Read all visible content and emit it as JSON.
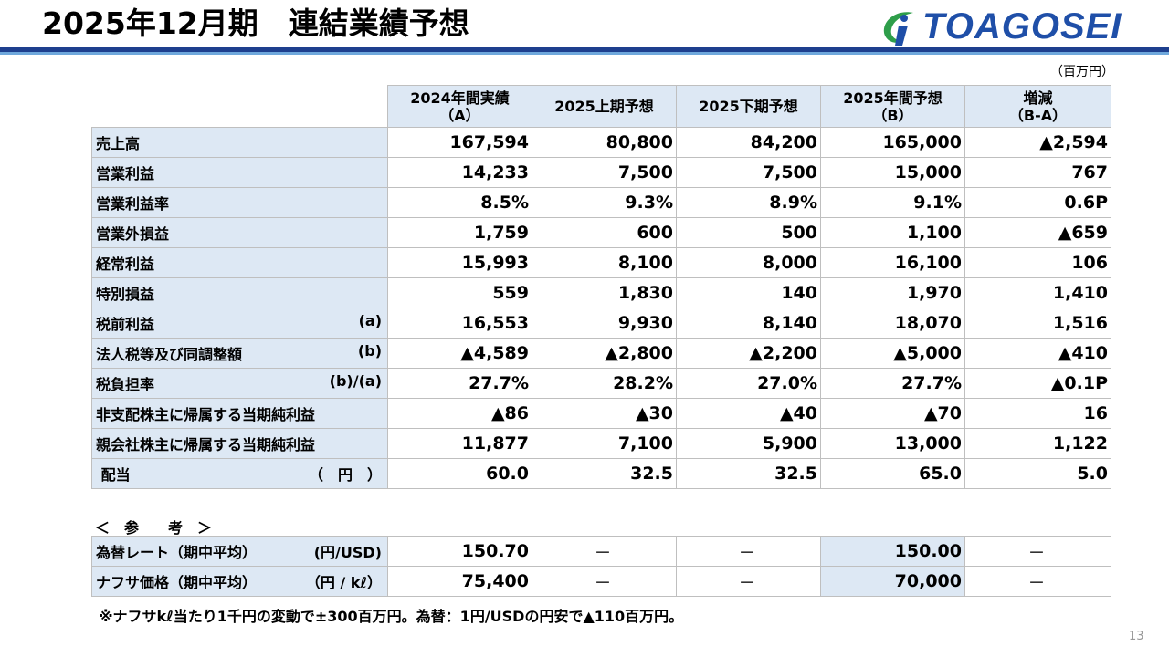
{
  "header": {
    "title": "2025年12月期　連結業績予想",
    "logo_text": "TOAGOSEI",
    "unit": "（百万円）"
  },
  "colors": {
    "accent": "#1e3f8e",
    "light_accent": "#6fa8dc",
    "cell_fill": "#dde8f4"
  },
  "columns": [
    "2024年間実績\n（A）",
    "2025上期予想",
    "2025下期予想",
    "2025年間予想\n（B）",
    "増減\n（B-A）"
  ],
  "rows": [
    {
      "label": "売上高",
      "sub": "",
      "values": [
        "167,594",
        "80,800",
        "84,200",
        "165,000",
        "▲2,594"
      ]
    },
    {
      "label": "営業利益",
      "sub": "",
      "values": [
        "14,233",
        "7,500",
        "7,500",
        "15,000",
        "767"
      ]
    },
    {
      "label": "営業利益率",
      "sub": "",
      "values": [
        "8.5%",
        "9.3%",
        "8.9%",
        "9.1%",
        "0.6P"
      ]
    },
    {
      "label": "営業外損益",
      "sub": "",
      "values": [
        "1,759",
        "600",
        "500",
        "1,100",
        "▲659"
      ]
    },
    {
      "label": "経常利益",
      "sub": "",
      "values": [
        "15,993",
        "8,100",
        "8,000",
        "16,100",
        "106"
      ]
    },
    {
      "label": "特別損益",
      "sub": "",
      "values": [
        "559",
        "1,830",
        "140",
        "1,970",
        "1,410"
      ]
    },
    {
      "label": "税前利益",
      "sub": "(a)",
      "values": [
        "16,553",
        "9,930",
        "8,140",
        "18,070",
        "1,516"
      ]
    },
    {
      "label": "法人税等及び同調整額",
      "sub": "(b)",
      "values": [
        "▲4,589",
        "▲2,800",
        "▲2,200",
        "▲5,000",
        "▲410"
      ]
    },
    {
      "label": "税負担率",
      "sub": "(b)/(a)",
      "values": [
        "27.7%",
        "28.2%",
        "27.0%",
        "27.7%",
        "▲0.1P"
      ]
    },
    {
      "label": "非支配株主に帰属する当期純利益",
      "sub": "",
      "values": [
        "▲86",
        "▲30",
        "▲40",
        "▲70",
        "16"
      ]
    },
    {
      "label": "親会社株主に帰属する当期純利益",
      "sub": "",
      "values": [
        "11,877",
        "7,100",
        "5,900",
        "13,000",
        "1,122"
      ]
    },
    {
      "label": " 配当",
      "sub": "（　円　）",
      "values": [
        "60.0",
        "32.5",
        "32.5",
        "65.0",
        "5.0"
      ]
    }
  ],
  "reference": {
    "heading": "＜　参　　考　＞",
    "rows": [
      {
        "label": "為替レート（期中平均）",
        "sub": "(円/USD)",
        "values": [
          "150.70",
          "－",
          "－",
          "150.00",
          "－"
        ]
      },
      {
        "label": "ナフサ価格（期中平均）",
        "sub": "（円 / kℓ）",
        "values": [
          "75,400",
          "－",
          "－",
          "70,000",
          "－"
        ]
      }
    ]
  },
  "footnote": "※ナフサkℓ当たり1千円の変動で±300百万円。為替：1円/USDの円安で▲110百万円。",
  "page_number": "13"
}
